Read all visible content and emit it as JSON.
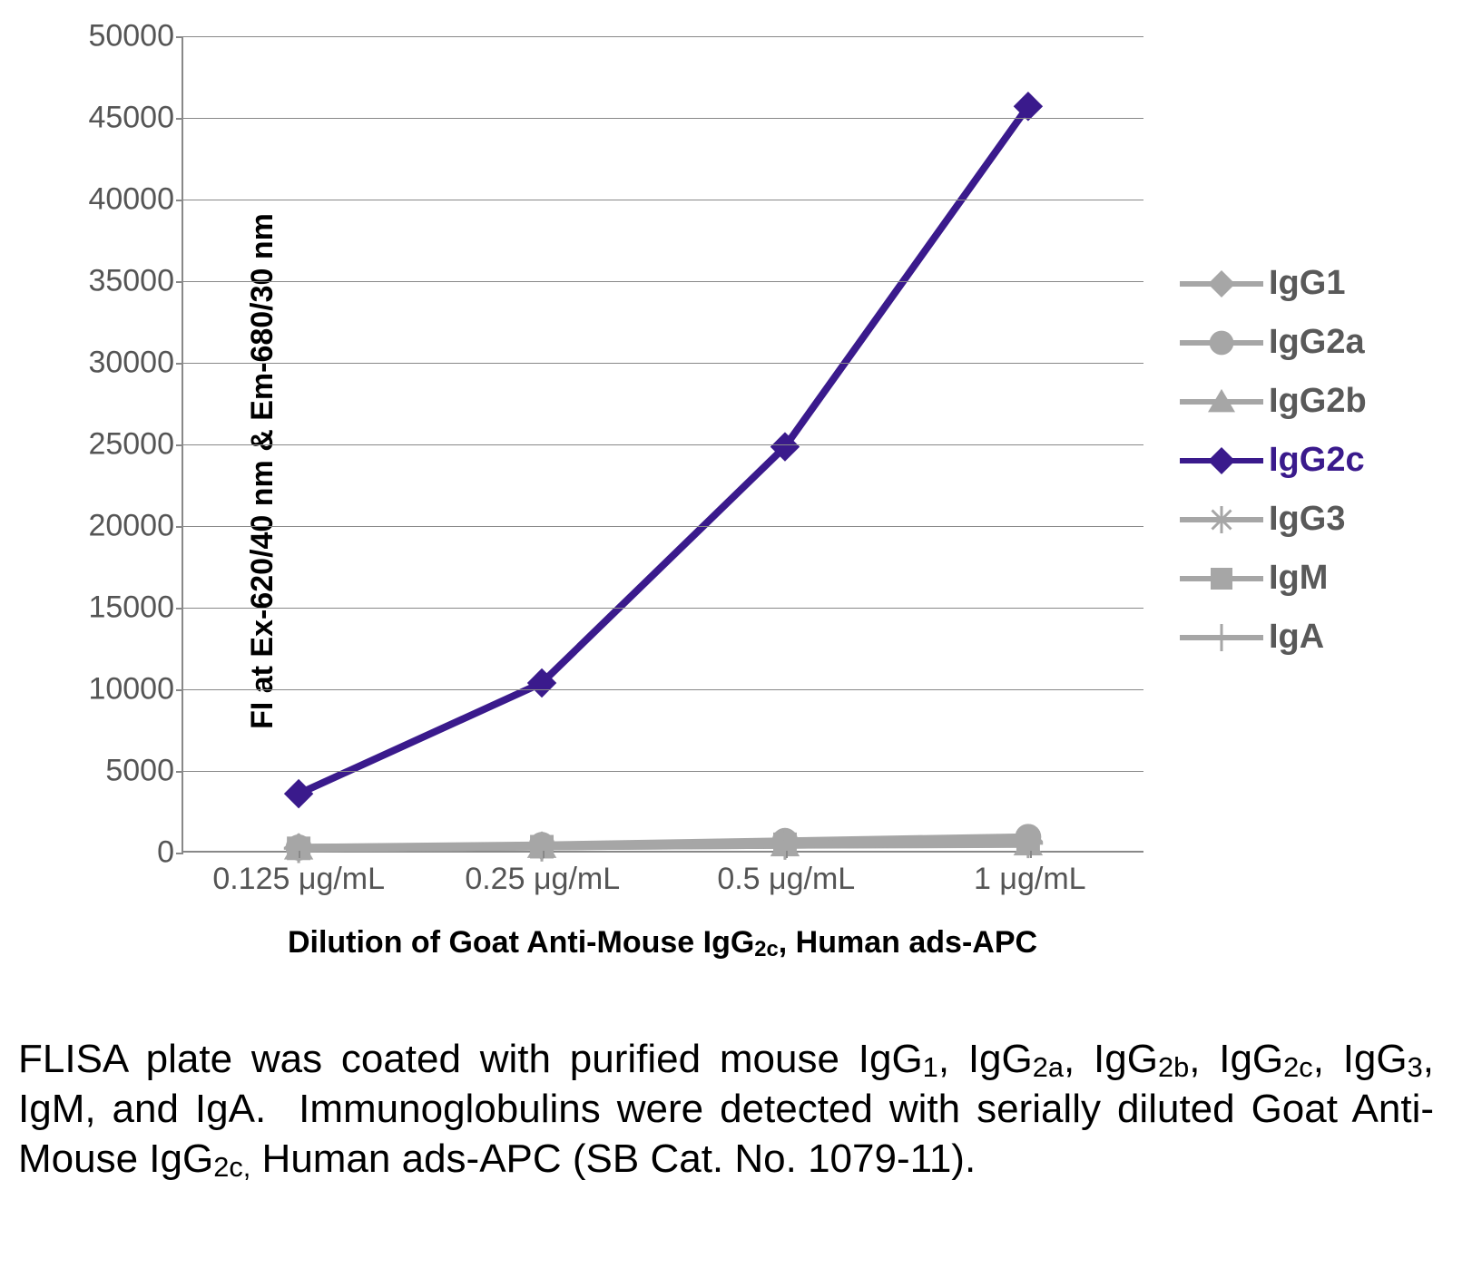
{
  "chart": {
    "type": "line",
    "y_axis": {
      "title": "FI at Ex-620/40 nm & Em-680/30 nm",
      "min": 0,
      "max": 50000,
      "step": 5000,
      "title_fontsize": 34,
      "tick_fontsize": 34,
      "tick_color": "#595959",
      "grid_color": "#888888"
    },
    "x_axis": {
      "title": "Dilution of Goat Anti-Mouse IgG2c, Human ads-APC",
      "title_html": "Dilution of Goat Anti-Mouse IgG<span class='sub'>2c</span>, Human ads-APC",
      "categories": [
        "0.125 μg/mL",
        "0.25 μg/mL",
        "0.5 μg/mL",
        "1 μg/mL"
      ],
      "title_fontsize": 34,
      "tick_fontsize": 34,
      "tick_color": "#595959"
    },
    "plot": {
      "background_color": "#ffffff",
      "line_width": 8,
      "marker_size": 26,
      "grid_line_width": 1
    },
    "series": [
      {
        "name": "IgG1",
        "marker": "diamond",
        "color": "#a6a6a6",
        "values": [
          200,
          300,
          500,
          600
        ]
      },
      {
        "name": "IgG2a",
        "marker": "circle",
        "color": "#a6a6a6",
        "values": [
          200,
          350,
          600,
          850
        ]
      },
      {
        "name": "IgG2b",
        "marker": "triangle",
        "color": "#a6a6a6",
        "values": [
          150,
          250,
          350,
          400
        ]
      },
      {
        "name": "IgG2c",
        "marker": "diamond",
        "color": "#3a1a8c",
        "values": [
          3500,
          10300,
          24800,
          45700
        ]
      },
      {
        "name": "IgG3",
        "marker": "asterisk",
        "color": "#a6a6a6",
        "values": [
          150,
          250,
          350,
          450
        ]
      },
      {
        "name": "IgM",
        "marker": "square",
        "color": "#a6a6a6",
        "values": [
          150,
          250,
          400,
          500
        ]
      },
      {
        "name": "IgA",
        "marker": "plus",
        "color": "#a6a6a6",
        "values": [
          150,
          250,
          400,
          500
        ]
      }
    ],
    "legend": {
      "position": "right",
      "fontsize": 38,
      "font_weight": "bold",
      "text_color": "#595959"
    }
  },
  "caption": {
    "text": "FLISA plate was coated with purified mouse IgG1, IgG2a, IgG2b, IgG2c, IgG3, IgM, and IgA.  Immunoglobulins were detected with serially diluted Goat Anti-Mouse IgG2c, Human ads-APC (SB Cat. No. 1079-11).",
    "html": "FLISA plate was coated with purified mouse IgG<span class='sub'>1</span>, IgG<span class='sub'>2a</span>, IgG<span class='sub'>2b</span>, IgG<span class='sub'>2c</span>, IgG<span class='sub'>3</span>, IgM, and IgA.&nbsp; Immunoglobulins were detected with serially diluted Goat Anti-Mouse IgG<span class='sub'>2c,</span> Human ads-APC (SB Cat. No. 1079-11).",
    "fontsize": 44,
    "color": "#000000"
  }
}
